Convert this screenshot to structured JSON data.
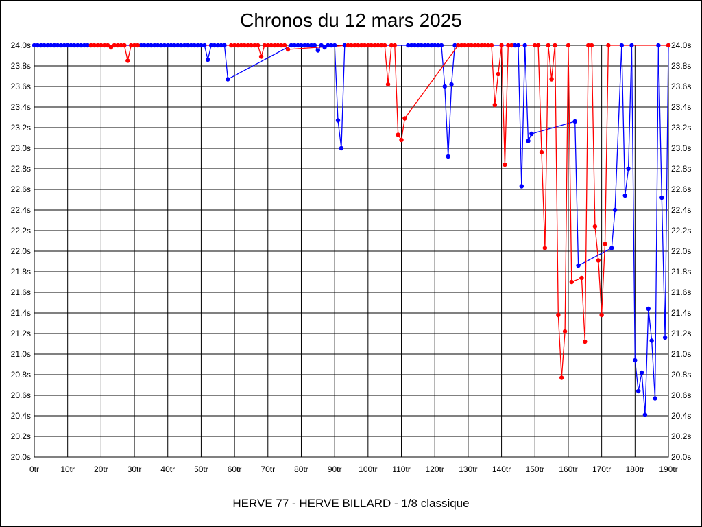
{
  "chart_data": {
    "type": "line",
    "title": "Chronos du 12 mars 2025",
    "subtitle": "HERVE 77 - HERVE BILLARD - 1/8 classique",
    "xlim": [
      0,
      190
    ],
    "ylim": [
      20.0,
      24.0
    ],
    "x_ticks": [
      {
        "value": 0,
        "label": "0tr"
      },
      {
        "value": 10,
        "label": "10tr"
      },
      {
        "value": 20,
        "label": "20tr"
      },
      {
        "value": 30,
        "label": "30tr"
      },
      {
        "value": 40,
        "label": "40tr"
      },
      {
        "value": 50,
        "label": "50tr"
      },
      {
        "value": 60,
        "label": "60tr"
      },
      {
        "value": 70,
        "label": "70tr"
      },
      {
        "value": 80,
        "label": "80tr"
      },
      {
        "value": 90,
        "label": "90tr"
      },
      {
        "value": 100,
        "label": "100tr"
      },
      {
        "value": 110,
        "label": "110tr"
      },
      {
        "value": 120,
        "label": "120tr"
      },
      {
        "value": 130,
        "label": "130tr"
      },
      {
        "value": 140,
        "label": "140tr"
      },
      {
        "value": 150,
        "label": "150tr"
      },
      {
        "value": 160,
        "label": "160tr"
      },
      {
        "value": 170,
        "label": "170tr"
      },
      {
        "value": 180,
        "label": "180tr"
      },
      {
        "value": 190,
        "label": "190tr"
      }
    ],
    "y_ticks": [
      {
        "value": 24.0,
        "label": "24.0s"
      },
      {
        "value": 23.8,
        "label": "23.8s"
      },
      {
        "value": 23.6,
        "label": "23.6s"
      },
      {
        "value": 23.4,
        "label": "23.4s"
      },
      {
        "value": 23.2,
        "label": "23.2s"
      },
      {
        "value": 23.0,
        "label": "23.0s"
      },
      {
        "value": 22.8,
        "label": "22.8s"
      },
      {
        "value": 22.6,
        "label": "22.6s"
      },
      {
        "value": 22.4,
        "label": "22.4s"
      },
      {
        "value": 22.2,
        "label": "22.2s"
      },
      {
        "value": 22.0,
        "label": "22.0s"
      },
      {
        "value": 21.8,
        "label": "21.8s"
      },
      {
        "value": 21.6,
        "label": "21.6s"
      },
      {
        "value": 21.4,
        "label": "21.4s"
      },
      {
        "value": 21.2,
        "label": "21.2s"
      },
      {
        "value": 21.0,
        "label": "21.0s"
      },
      {
        "value": 20.8,
        "label": "20.8s"
      },
      {
        "value": 20.6,
        "label": "20.6s"
      },
      {
        "value": 20.4,
        "label": "20.4s"
      },
      {
        "value": 20.2,
        "label": "20.2s"
      },
      {
        "value": 20.0,
        "label": "20.0s"
      }
    ],
    "grid": true,
    "series": [
      {
        "color": "#0000ff",
        "points": [
          [
            0,
            24
          ],
          [
            1,
            24
          ],
          [
            2,
            24
          ],
          [
            3,
            24
          ],
          [
            4,
            24
          ],
          [
            5,
            24
          ],
          [
            6,
            24
          ],
          [
            7,
            24
          ],
          [
            8,
            24
          ],
          [
            9,
            24
          ],
          [
            10,
            24
          ],
          [
            11,
            24
          ],
          [
            12,
            24
          ],
          [
            13,
            24
          ],
          [
            14,
            24
          ],
          [
            15,
            24
          ],
          [
            16,
            24
          ],
          [
            32,
            24
          ],
          [
            33,
            24
          ],
          [
            34,
            24
          ],
          [
            35,
            24
          ],
          [
            36,
            24
          ],
          [
            37,
            24
          ],
          [
            38,
            24
          ],
          [
            39,
            24
          ],
          [
            40,
            24
          ],
          [
            41,
            24
          ],
          [
            42,
            24
          ],
          [
            43,
            24
          ],
          [
            44,
            24
          ],
          [
            45,
            24
          ],
          [
            46,
            24
          ],
          [
            47,
            24
          ],
          [
            48,
            24
          ],
          [
            49,
            24
          ],
          [
            50,
            24
          ],
          [
            51,
            24
          ],
          [
            52,
            23.86
          ],
          [
            53,
            24
          ],
          [
            54,
            24
          ],
          [
            55,
            24
          ],
          [
            56,
            24
          ],
          [
            57,
            24
          ],
          [
            58,
            23.67
          ],
          [
            77,
            24
          ],
          [
            78,
            24
          ],
          [
            79,
            24
          ],
          [
            80,
            24
          ],
          [
            81,
            24
          ],
          [
            82,
            24
          ],
          [
            83,
            24
          ],
          [
            84,
            24
          ],
          [
            85,
            23.95
          ],
          [
            86,
            24
          ],
          [
            87,
            23.98
          ],
          [
            88,
            24
          ],
          [
            89,
            24
          ],
          [
            90,
            24
          ],
          [
            91,
            23.27
          ],
          [
            92,
            23.0
          ],
          [
            93,
            24
          ],
          [
            112,
            24
          ],
          [
            113,
            24
          ],
          [
            114,
            24
          ],
          [
            115,
            24
          ],
          [
            116,
            24
          ],
          [
            117,
            24
          ],
          [
            118,
            24
          ],
          [
            119,
            24
          ],
          [
            120,
            24
          ],
          [
            121,
            24
          ],
          [
            122,
            24
          ],
          [
            123,
            23.6
          ],
          [
            124,
            22.92
          ],
          [
            125,
            23.62
          ],
          [
            126,
            24
          ],
          [
            144,
            24
          ],
          [
            145,
            24
          ],
          [
            146,
            22.63
          ],
          [
            147,
            24
          ],
          [
            148,
            23.07
          ],
          [
            149,
            23.14
          ],
          [
            162,
            23.26
          ],
          [
            163,
            21.86
          ],
          [
            173,
            22.03
          ],
          [
            174,
            22.4
          ],
          [
            176,
            24
          ],
          [
            177,
            22.54
          ],
          [
            178,
            22.8
          ],
          [
            179,
            24
          ],
          [
            180,
            20.94
          ],
          [
            181,
            20.64
          ],
          [
            182,
            20.82
          ],
          [
            183,
            20.41
          ],
          [
            184,
            21.44
          ],
          [
            185,
            21.13
          ],
          [
            186,
            20.57
          ],
          [
            187,
            24
          ],
          [
            188,
            22.52
          ],
          [
            189,
            21.16
          ],
          [
            190,
            24
          ]
        ]
      },
      {
        "color": "#ff0000",
        "points": [
          [
            17,
            24
          ],
          [
            18,
            24
          ],
          [
            19,
            24
          ],
          [
            20,
            24
          ],
          [
            21,
            24
          ],
          [
            22,
            24
          ],
          [
            23,
            23.98
          ],
          [
            24,
            24
          ],
          [
            25,
            24
          ],
          [
            26,
            24
          ],
          [
            27,
            24
          ],
          [
            28,
            23.85
          ],
          [
            29,
            24
          ],
          [
            30,
            24
          ],
          [
            31,
            24
          ],
          [
            59,
            24
          ],
          [
            60,
            24
          ],
          [
            61,
            24
          ],
          [
            62,
            24
          ],
          [
            63,
            24
          ],
          [
            64,
            24
          ],
          [
            65,
            24
          ],
          [
            66,
            24
          ],
          [
            67,
            24
          ],
          [
            68,
            23.89
          ],
          [
            69,
            24
          ],
          [
            70,
            24
          ],
          [
            71,
            24
          ],
          [
            72,
            24
          ],
          [
            73,
            24
          ],
          [
            74,
            24
          ],
          [
            75,
            24
          ],
          [
            76,
            23.96
          ],
          [
            94,
            24
          ],
          [
            95,
            24
          ],
          [
            96,
            24
          ],
          [
            97,
            24
          ],
          [
            98,
            24
          ],
          [
            99,
            24
          ],
          [
            100,
            24
          ],
          [
            101,
            24
          ],
          [
            102,
            24
          ],
          [
            103,
            24
          ],
          [
            104,
            24
          ],
          [
            105,
            24
          ],
          [
            106,
            23.62
          ],
          [
            107,
            24
          ],
          [
            108,
            24
          ],
          [
            109,
            23.13
          ],
          [
            110,
            23.08
          ],
          [
            111,
            23.29
          ],
          [
            127,
            24
          ],
          [
            128,
            24
          ],
          [
            129,
            24
          ],
          [
            130,
            24
          ],
          [
            131,
            24
          ],
          [
            132,
            24
          ],
          [
            133,
            24
          ],
          [
            134,
            24
          ],
          [
            135,
            24
          ],
          [
            136,
            24
          ],
          [
            137,
            24
          ],
          [
            138,
            23.42
          ],
          [
            139,
            23.72
          ],
          [
            140,
            24
          ],
          [
            141,
            22.84
          ],
          [
            142,
            24
          ],
          [
            143,
            24
          ],
          [
            150,
            24
          ],
          [
            151,
            24
          ],
          [
            152,
            22.96
          ],
          [
            153,
            22.03
          ],
          [
            154,
            24
          ],
          [
            155,
            23.67
          ],
          [
            156,
            24
          ],
          [
            157,
            21.38
          ],
          [
            158,
            20.77
          ],
          [
            159,
            21.22
          ],
          [
            160,
            24
          ],
          [
            161,
            21.7
          ],
          [
            164,
            21.74
          ],
          [
            165,
            21.12
          ],
          [
            166,
            24
          ],
          [
            167,
            24
          ],
          [
            168,
            22.24
          ],
          [
            169,
            21.91
          ],
          [
            170,
            21.38
          ],
          [
            171,
            22.07
          ],
          [
            172,
            24
          ],
          [
            190,
            24
          ]
        ]
      }
    ]
  }
}
